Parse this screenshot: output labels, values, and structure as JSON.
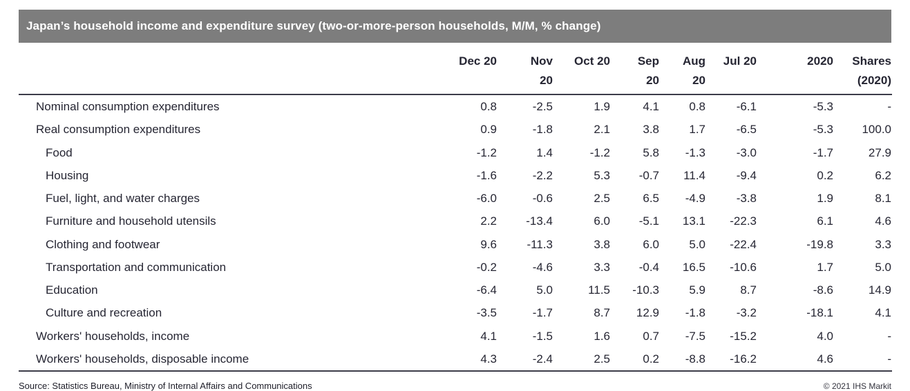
{
  "header": {
    "title": "Japan’s household income and expenditure survey (two-or-more-person households, M/M, % change)"
  },
  "colors": {
    "title_bar_bg": "#7d7d7d",
    "title_text": "#ffffff",
    "body_text": "#262633",
    "rule": "#3c3c49"
  },
  "chart_data": {
    "type": "table",
    "title": "Japan’s household income and expenditure survey (two-or-more-person households, M/M, % change)",
    "unit": "M/M, % change",
    "columns": [
      {
        "label": "Dec 20",
        "two_line": false
      },
      {
        "label": "Nov 20",
        "two_line": true
      },
      {
        "label": "Oct 20",
        "two_line": false
      },
      {
        "label": "Sep 20",
        "two_line": true
      },
      {
        "label": "Aug 20",
        "two_line": true
      },
      {
        "label": "Jul 20",
        "two_line": false
      },
      {
        "label": "2020",
        "two_line": false
      },
      {
        "label": "Shares (2020)",
        "two_line": true
      }
    ],
    "rows": [
      {
        "label": "Nominal consumption expenditures",
        "indent": 1,
        "values": [
          "0.8",
          "-2.5",
          "1.9",
          "4.1",
          "0.8",
          "-6.1",
          "-5.3",
          "-"
        ]
      },
      {
        "label": "Real consumption expenditures",
        "indent": 1,
        "values": [
          "0.9",
          "-1.8",
          "2.1",
          "3.8",
          "1.7",
          "-6.5",
          "-5.3",
          "100.0"
        ]
      },
      {
        "label": "Food",
        "indent": 2,
        "values": [
          "-1.2",
          "1.4",
          "-1.2",
          "5.8",
          "-1.3",
          "-3.0",
          "-1.7",
          "27.9"
        ]
      },
      {
        "label": "Housing",
        "indent": 2,
        "values": [
          "-1.6",
          "-2.2",
          "5.3",
          "-0.7",
          "11.4",
          "-9.4",
          "0.2",
          "6.2"
        ]
      },
      {
        "label": "Fuel, light, and water charges",
        "indent": 2,
        "values": [
          "-6.0",
          "-0.6",
          "2.5",
          "6.5",
          "-4.9",
          "-3.8",
          "1.9",
          "8.1"
        ]
      },
      {
        "label": "Furniture and household utensils",
        "indent": 2,
        "values": [
          "2.2",
          "-13.4",
          "6.0",
          "-5.1",
          "13.1",
          "-22.3",
          "6.1",
          "4.6"
        ]
      },
      {
        "label": "Clothing and footwear",
        "indent": 2,
        "values": [
          "9.6",
          "-11.3",
          "3.8",
          "6.0",
          "5.0",
          "-22.4",
          "-19.8",
          "3.3"
        ]
      },
      {
        "label": "Transportation and communication",
        "indent": 2,
        "values": [
          "-0.2",
          "-4.6",
          "3.3",
          "-0.4",
          "16.5",
          "-10.6",
          "1.7",
          "5.0"
        ]
      },
      {
        "label": "Education",
        "indent": 2,
        "values": [
          "-6.4",
          "5.0",
          "11.5",
          "-10.3",
          "5.9",
          "8.7",
          "-8.6",
          "14.9"
        ]
      },
      {
        "label": "Culture and recreation",
        "indent": 2,
        "values": [
          "-3.5",
          "-1.7",
          "8.7",
          "12.9",
          "-1.8",
          "-3.2",
          "-18.1",
          "4.1"
        ]
      },
      {
        "label": "Workers' households, income",
        "indent": 1,
        "values": [
          "4.1",
          "-1.5",
          "1.6",
          "0.7",
          "-7.5",
          "-15.2",
          "4.0",
          "-"
        ]
      },
      {
        "label": "Workers' households, disposable income",
        "indent": 1,
        "values": [
          "4.3",
          "-2.4",
          "2.5",
          "0.2",
          "-8.8",
          "-16.2",
          "4.6",
          "-"
        ]
      }
    ]
  },
  "footer": {
    "source": "Source: Statistics Bureau, Ministry of Internal Affairs and Communications",
    "copyright": "© 2021 IHS Markit"
  }
}
